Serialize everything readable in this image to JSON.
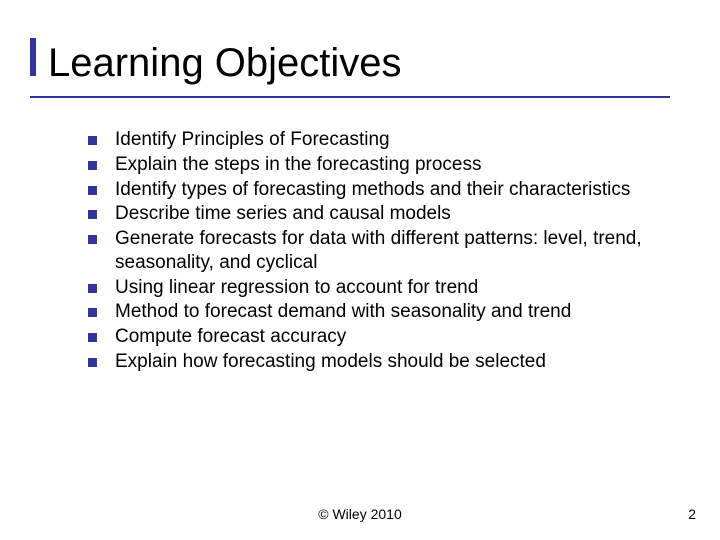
{
  "title": "Learning Objectives",
  "accent_color": "#333399",
  "text_color": "#000000",
  "background_color": "#ffffff",
  "title_fontsize": 40,
  "bullet_fontsize": 19,
  "footer_fontsize": 14,
  "bullets": [
    "Identify Principles of Forecasting",
    "Explain the steps in the forecasting process",
    "Identify types of forecasting methods and their characteristics",
    "Describe time series and causal models",
    "Generate forecasts for data with different patterns: level, trend, seasonality, and cyclical",
    "Using linear regression to account for trend",
    "Method to forecast demand with seasonality and trend",
    "Compute forecast accuracy",
    "Explain how forecasting models should be selected"
  ],
  "footer": "© Wiley 2010",
  "page_number": "2"
}
